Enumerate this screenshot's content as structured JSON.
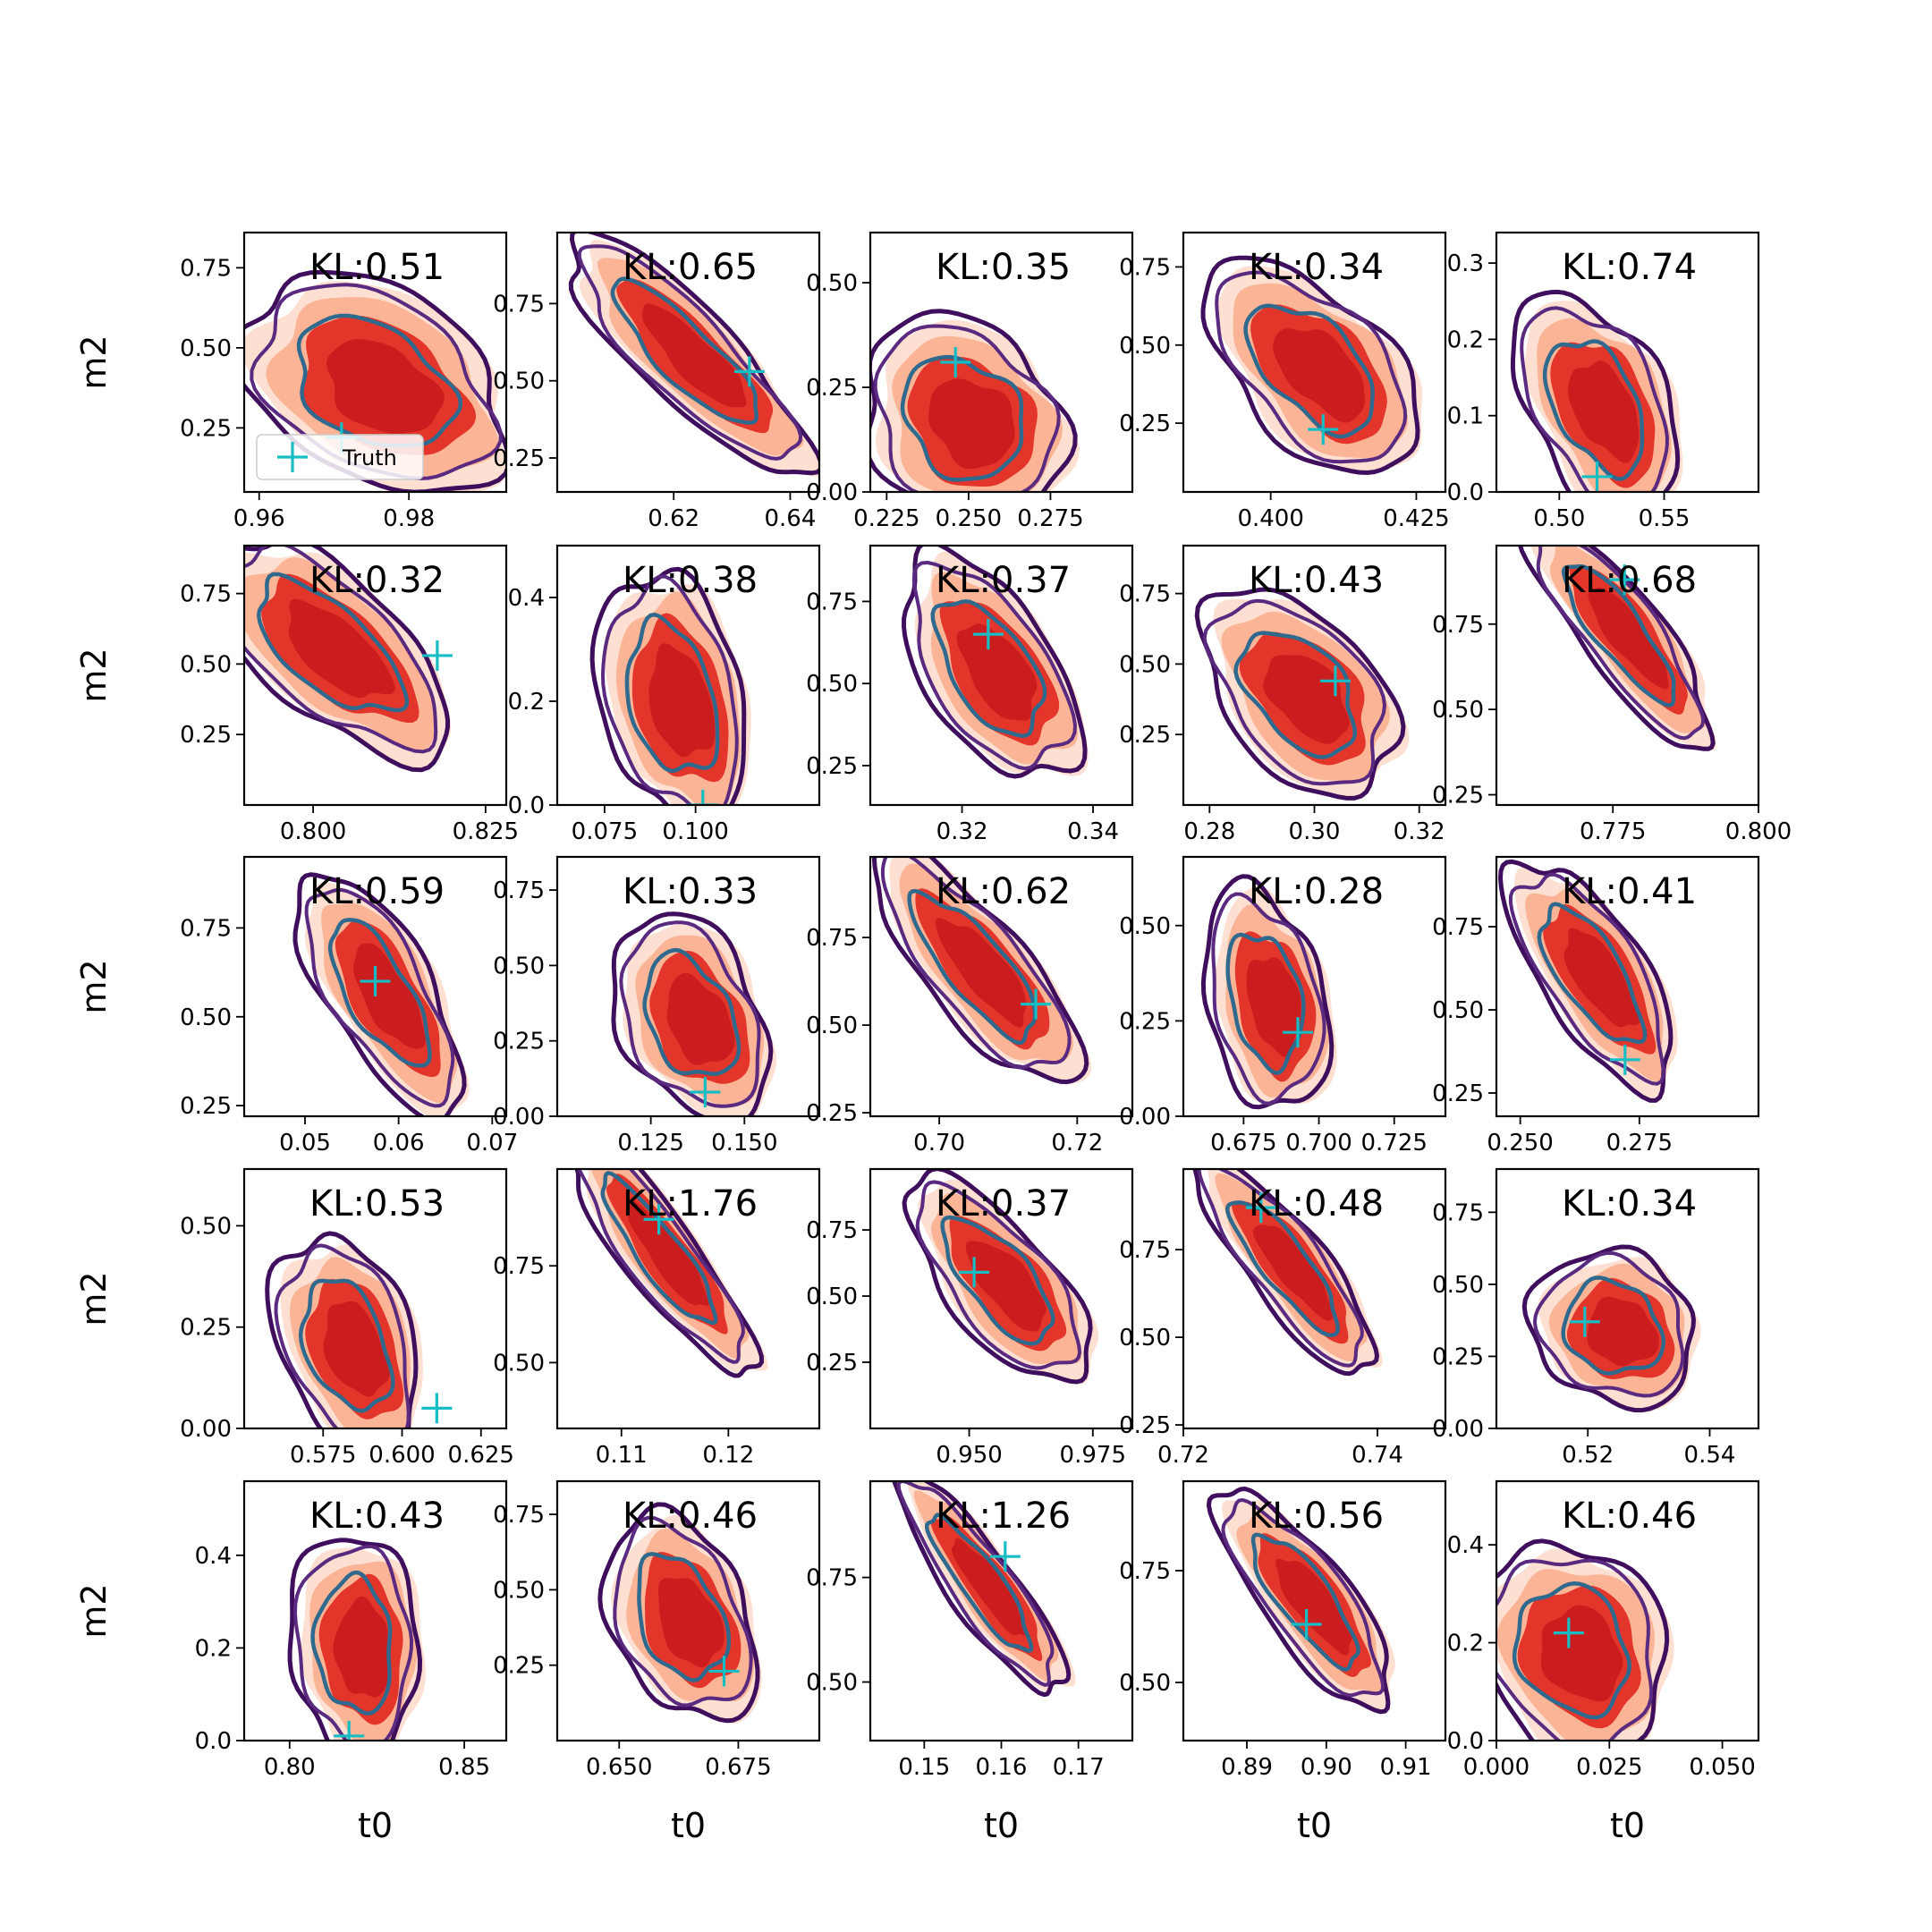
{
  "chart_data": {
    "type": "contour-grid",
    "rows": 5,
    "cols": 5,
    "xlabel": "t0",
    "ylabel": "m2",
    "legend": {
      "label": "Truth",
      "placement": "lower-left",
      "panel": 0
    },
    "colors": {
      "fill_outer": "#fde0d2",
      "fill_mid": "#fbb496",
      "fill_inner": "#e3352a",
      "fill_core": "#cb1d1e",
      "line_outer": "#3f0f5e",
      "line_mid": "#5a2a80",
      "line_inner": "#2f6a8e",
      "truth": "#17bdc4"
    },
    "panels": [
      {
        "kl": "KL:0.51",
        "xlim": [
          0.958,
          0.993
        ],
        "ylim": [
          0.05,
          0.86
        ],
        "xticks": [
          0.96,
          0.98
        ],
        "xtick_labels": [
          "0.96",
          "0.98"
        ],
        "yticks": [
          0.25,
          0.5,
          0.75
        ],
        "ytick_labels": [
          "0.25",
          "0.50",
          "0.75"
        ],
        "truth": [
          0.971,
          0.22
        ],
        "center": [
          0.976,
          0.38
        ],
        "sx": 0.0072,
        "sy": 0.14,
        "rho": -0.35
      },
      {
        "kl": "KL:0.65",
        "xlim": [
          0.6,
          0.645
        ],
        "ylim": [
          0.14,
          0.98
        ],
        "xticks": [
          0.62,
          0.64
        ],
        "xtick_labels": [
          "0.62",
          "0.64"
        ],
        "yticks": [
          0.25,
          0.5,
          0.75
        ],
        "ytick_labels": [
          "0.25",
          "0.50",
          "0.75"
        ],
        "truth": [
          0.633,
          0.53
        ],
        "center": [
          0.623,
          0.58
        ],
        "sx": 0.0085,
        "sy": 0.16,
        "rho": -0.85
      },
      {
        "kl": "KL:0.35",
        "xlim": [
          0.22,
          0.3
        ],
        "ylim": [
          0.0,
          0.62
        ],
        "xticks": [
          0.225,
          0.25,
          0.275
        ],
        "xtick_labels": [
          "0.225",
          "0.250",
          "0.275"
        ],
        "yticks": [
          0.0,
          0.25,
          0.5
        ],
        "ytick_labels": [
          "0.00",
          "0.25",
          "0.50"
        ],
        "truth": [
          0.246,
          0.31
        ],
        "center": [
          0.25,
          0.17
        ],
        "sx": 0.0125,
        "sy": 0.1,
        "rho": -0.2
      },
      {
        "kl": "KL:0.34",
        "xlim": [
          0.385,
          0.43
        ],
        "ylim": [
          0.03,
          0.86
        ],
        "xticks": [
          0.4,
          0.425
        ],
        "xtick_labels": [
          "0.400",
          "0.425"
        ],
        "yticks": [
          0.25,
          0.5,
          0.75
        ],
        "ytick_labels": [
          "0.25",
          "0.50",
          "0.75"
        ],
        "truth": [
          0.409,
          0.23
        ],
        "center": [
          0.408,
          0.42
        ],
        "sx": 0.0075,
        "sy": 0.14,
        "rho": -0.55
      },
      {
        "kl": "KL:0.74",
        "xlim": [
          0.47,
          0.595
        ],
        "ylim": [
          0.0,
          0.34
        ],
        "xticks": [
          0.5,
          0.55
        ],
        "xtick_labels": [
          "0.50",
          "0.55"
        ],
        "yticks": [
          0.0,
          0.1,
          0.2,
          0.3
        ],
        "ytick_labels": [
          "0.0",
          "0.1",
          "0.2",
          "0.3"
        ],
        "truth": [
          0.518,
          0.02
        ],
        "center": [
          0.52,
          0.11
        ],
        "sx": 0.016,
        "sy": 0.06,
        "rho": -0.45
      },
      {
        "kl": "KL:0.32",
        "xlim": [
          0.79,
          0.828
        ],
        "ylim": [
          0.0,
          0.92
        ],
        "xticks": [
          0.8,
          0.825
        ],
        "xtick_labels": [
          "0.800",
          "0.825"
        ],
        "yticks": [
          0.25,
          0.5,
          0.75
        ],
        "ytick_labels": [
          "0.25",
          "0.50",
          "0.75"
        ],
        "truth": [
          0.818,
          0.53
        ],
        "center": [
          0.803,
          0.55
        ],
        "sx": 0.0072,
        "sy": 0.16,
        "rho": -0.65
      },
      {
        "kl": "KL:0.38",
        "xlim": [
          0.062,
          0.134
        ],
        "ylim": [
          0.0,
          0.5
        ],
        "xticks": [
          0.075,
          0.1
        ],
        "xtick_labels": [
          "0.075",
          "0.100"
        ],
        "yticks": [
          0.0,
          0.2,
          0.4
        ],
        "ytick_labels": [
          "0.0",
          "0.2",
          "0.4"
        ],
        "truth": [
          0.102,
          0.0
        ],
        "center": [
          0.095,
          0.2
        ],
        "sx": 0.0085,
        "sy": 0.1,
        "rho": -0.3
      },
      {
        "kl": "KL:0.37",
        "xlim": [
          0.306,
          0.346
        ],
        "ylim": [
          0.13,
          0.92
        ],
        "xticks": [
          0.32,
          0.34
        ],
        "xtick_labels": [
          "0.32",
          "0.34"
        ],
        "yticks": [
          0.25,
          0.5,
          0.75
        ],
        "ytick_labels": [
          "0.25",
          "0.50",
          "0.75"
        ],
        "truth": [
          0.324,
          0.65
        ],
        "center": [
          0.325,
          0.54
        ],
        "sx": 0.0055,
        "sy": 0.14,
        "rho": -0.55
      },
      {
        "kl": "KL:0.43",
        "xlim": [
          0.275,
          0.325
        ],
        "ylim": [
          0.0,
          0.92
        ],
        "xticks": [
          0.28,
          0.3,
          0.32
        ],
        "xtick_labels": [
          "0.28",
          "0.30",
          "0.32"
        ],
        "yticks": [
          0.25,
          0.5,
          0.75
        ],
        "ytick_labels": [
          "0.25",
          "0.50",
          "0.75"
        ],
        "truth": [
          0.304,
          0.44
        ],
        "center": [
          0.298,
          0.39
        ],
        "sx": 0.0075,
        "sy": 0.15,
        "rho": -0.45
      },
      {
        "kl": "KL:0.68",
        "xlim": [
          0.755,
          0.8
        ],
        "ylim": [
          0.22,
          0.98
        ],
        "xticks": [
          0.775,
          0.8
        ],
        "xtick_labels": [
          "0.775",
          "0.800"
        ],
        "yticks": [
          0.25,
          0.5,
          0.75
        ],
        "ytick_labels": [
          "0.25",
          "0.50",
          "0.75"
        ],
        "truth": [
          0.777,
          0.88
        ],
        "center": [
          0.777,
          0.72
        ],
        "sx": 0.0065,
        "sy": 0.14,
        "rho": -0.85
      },
      {
        "kl": "KL:0.59",
        "xlim": [
          0.0435,
          0.0715
        ],
        "ylim": [
          0.22,
          0.95
        ],
        "xticks": [
          0.05,
          0.06,
          0.07
        ],
        "xtick_labels": [
          "0.05",
          "0.06",
          "0.07"
        ],
        "yticks": [
          0.25,
          0.5,
          0.75
        ],
        "ytick_labels": [
          "0.25",
          "0.50",
          "0.75"
        ],
        "truth": [
          0.0575,
          0.6
        ],
        "center": [
          0.0585,
          0.56
        ],
        "sx": 0.0036,
        "sy": 0.14,
        "rho": -0.7
      },
      {
        "kl": "KL:0.33",
        "xlim": [
          0.1,
          0.17
        ],
        "ylim": [
          0.0,
          0.86
        ],
        "xticks": [
          0.125,
          0.15
        ],
        "xtick_labels": [
          "0.125",
          "0.150"
        ],
        "yticks": [
          0.0,
          0.25,
          0.5,
          0.75
        ],
        "ytick_labels": [
          "0.00",
          "0.25",
          "0.50",
          "0.75"
        ],
        "truth": [
          0.1395,
          0.08
        ],
        "center": [
          0.137,
          0.32
        ],
        "sx": 0.0085,
        "sy": 0.14,
        "rho": -0.35
      },
      {
        "kl": "KL:0.62",
        "xlim": [
          0.69,
          0.728
        ],
        "ylim": [
          0.24,
          0.98
        ],
        "xticks": [
          0.7,
          0.72
        ],
        "xtick_labels": [
          "0.70",
          "0.72"
        ],
        "yticks": [
          0.25,
          0.5,
          0.75
        ],
        "ytick_labels": [
          "0.25",
          "0.50",
          "0.75"
        ],
        "truth": [
          0.714,
          0.56
        ],
        "center": [
          0.706,
          0.66
        ],
        "sx": 0.0062,
        "sy": 0.14,
        "rho": -0.8
      },
      {
        "kl": "KL:0.28",
        "xlim": [
          0.655,
          0.742
        ],
        "ylim": [
          0.0,
          0.68
        ],
        "xticks": [
          0.675,
          0.7,
          0.725
        ],
        "xtick_labels": [
          "0.675",
          "0.700",
          "0.725"
        ],
        "yticks": [
          0.0,
          0.25,
          0.5
        ],
        "ytick_labels": [
          "0.00",
          "0.25",
          "0.50"
        ],
        "truth": [
          0.693,
          0.22
        ],
        "center": [
          0.684,
          0.3
        ],
        "sx": 0.0085,
        "sy": 0.12,
        "rho": -0.3
      },
      {
        "kl": "KL:0.41",
        "xlim": [
          0.245,
          0.3
        ],
        "ylim": [
          0.18,
          0.96
        ],
        "xticks": [
          0.25,
          0.275
        ],
        "xtick_labels": [
          "0.250",
          "0.275"
        ],
        "yticks": [
          0.25,
          0.5,
          0.75
        ],
        "ytick_labels": [
          "0.25",
          "0.50",
          "0.75"
        ],
        "truth": [
          0.272,
          0.35
        ],
        "center": [
          0.266,
          0.6
        ],
        "sx": 0.0072,
        "sy": 0.14,
        "rho": -0.7
      },
      {
        "kl": "KL:0.53",
        "xlim": [
          0.55,
          0.633
        ],
        "ylim": [
          0.0,
          0.64
        ],
        "xticks": [
          0.575,
          0.6,
          0.625
        ],
        "xtick_labels": [
          "0.575",
          "0.600",
          "0.625"
        ],
        "yticks": [
          0.0,
          0.25,
          0.5
        ],
        "ytick_labels": [
          "0.00",
          "0.25",
          "0.50"
        ],
        "truth": [
          0.611,
          0.05
        ],
        "center": [
          0.584,
          0.2
        ],
        "sx": 0.0095,
        "sy": 0.11,
        "rho": -0.35
      },
      {
        "kl": "KL:1.76",
        "xlim": [
          0.104,
          0.1285
        ],
        "ylim": [
          0.33,
          1.0
        ],
        "xticks": [
          0.11,
          0.12
        ],
        "xtick_labels": [
          "0.11",
          "0.12"
        ],
        "yticks": [
          0.5,
          0.75
        ],
        "ytick_labels": [
          "0.50",
          "0.75"
        ],
        "truth": [
          0.1135,
          0.87
        ],
        "center": [
          0.114,
          0.78
        ],
        "sx": 0.0036,
        "sy": 0.13,
        "rho": -0.88
      },
      {
        "kl": "KL:0.37",
        "xlim": [
          0.93,
          0.983
        ],
        "ylim": [
          0.0,
          0.98
        ],
        "xticks": [
          0.95,
          0.975
        ],
        "xtick_labels": [
          "0.950",
          "0.975"
        ],
        "yticks": [
          0.25,
          0.5,
          0.75
        ],
        "ytick_labels": [
          "0.25",
          "0.50",
          "0.75"
        ],
        "truth": [
          0.951,
          0.59
        ],
        "center": [
          0.957,
          0.55
        ],
        "sx": 0.0075,
        "sy": 0.16,
        "rho": -0.7
      },
      {
        "kl": "KL:0.48",
        "xlim": [
          0.72,
          0.747
        ],
        "ylim": [
          0.24,
          0.98
        ],
        "xticks": [
          0.72,
          0.74
        ],
        "xtick_labels": [
          "0.72",
          "0.74"
        ],
        "yticks": [
          0.25,
          0.5,
          0.75
        ],
        "ytick_labels": [
          "0.25",
          "0.50",
          "0.75"
        ],
        "truth": [
          0.728,
          0.87
        ],
        "center": [
          0.731,
          0.7
        ],
        "sx": 0.0038,
        "sy": 0.13,
        "rho": -0.85
      },
      {
        "kl": "KL:0.34",
        "xlim": [
          0.505,
          0.548
        ],
        "ylim": [
          0.0,
          0.9
        ],
        "xticks": [
          0.52,
          0.54
        ],
        "xtick_labels": [
          "0.52",
          "0.54"
        ],
        "yticks": [
          0.0,
          0.25,
          0.5,
          0.75
        ],
        "ytick_labels": [
          "0.00",
          "0.25",
          "0.50",
          "0.75"
        ],
        "truth": [
          0.5195,
          0.37
        ],
        "center": [
          0.525,
          0.34
        ],
        "sx": 0.0055,
        "sy": 0.11,
        "rho": -0.15
      },
      {
        "kl": "KL:0.43",
        "xlim": [
          0.787,
          0.862
        ],
        "ylim": [
          0.0,
          0.56
        ],
        "xticks": [
          0.8,
          0.85
        ],
        "xtick_labels": [
          "0.80",
          "0.85"
        ],
        "yticks": [
          0.0,
          0.2,
          0.4
        ],
        "ytick_labels": [
          "0.0",
          "0.2",
          "0.4"
        ],
        "truth": [
          0.817,
          0.01
        ],
        "center": [
          0.82,
          0.2
        ],
        "sx": 0.0075,
        "sy": 0.1,
        "rho": -0.1
      },
      {
        "kl": "KL:0.46",
        "xlim": [
          0.637,
          0.692
        ],
        "ylim": [
          0.0,
          0.86
        ],
        "xticks": [
          0.65,
          0.675
        ],
        "xtick_labels": [
          "0.650",
          "0.675"
        ],
        "yticks": [
          0.25,
          0.5,
          0.75
        ],
        "ytick_labels": [
          "0.25",
          "0.50",
          "0.75"
        ],
        "truth": [
          0.672,
          0.23
        ],
        "center": [
          0.664,
          0.4
        ],
        "sx": 0.0065,
        "sy": 0.14,
        "rho": -0.35
      },
      {
        "kl": "KL:1.26",
        "xlim": [
          0.143,
          0.177
        ],
        "ylim": [
          0.36,
          0.98
        ],
        "xticks": [
          0.15,
          0.16,
          0.17
        ],
        "xtick_labels": [
          "0.15",
          "0.16",
          "0.17"
        ],
        "yticks": [
          0.5,
          0.75
        ],
        "ytick_labels": [
          "0.50",
          "0.75"
        ],
        "truth": [
          0.1605,
          0.8
        ],
        "center": [
          0.158,
          0.73
        ],
        "sx": 0.0045,
        "sy": 0.11,
        "rho": -0.88
      },
      {
        "kl": "KL:0.56",
        "xlim": [
          0.882,
          0.915
        ],
        "ylim": [
          0.37,
          0.95
        ],
        "xticks": [
          0.89,
          0.9,
          0.91
        ],
        "xtick_labels": [
          "0.89",
          "0.90",
          "0.91"
        ],
        "yticks": [
          0.5,
          0.75
        ],
        "ytick_labels": [
          "0.50",
          "0.75"
        ],
        "truth": [
          0.8975,
          0.63
        ],
        "center": [
          0.898,
          0.68
        ],
        "sx": 0.0045,
        "sy": 0.1,
        "rho": -0.8
      },
      {
        "kl": "KL:0.46",
        "xlim": [
          0.0,
          0.058
        ],
        "ylim": [
          0.0,
          0.53
        ],
        "xticks": [
          0.0,
          0.025,
          0.05
        ],
        "xtick_labels": [
          "0.000",
          "0.025",
          "0.050"
        ],
        "yticks": [
          0.0,
          0.2,
          0.4
        ],
        "ytick_labels": [
          "0.0",
          "0.2",
          "0.4"
        ],
        "truth": [
          0.016,
          0.22
        ],
        "center": [
          0.018,
          0.18
        ],
        "sx": 0.0085,
        "sy": 0.09,
        "rho": -0.15
      }
    ]
  }
}
